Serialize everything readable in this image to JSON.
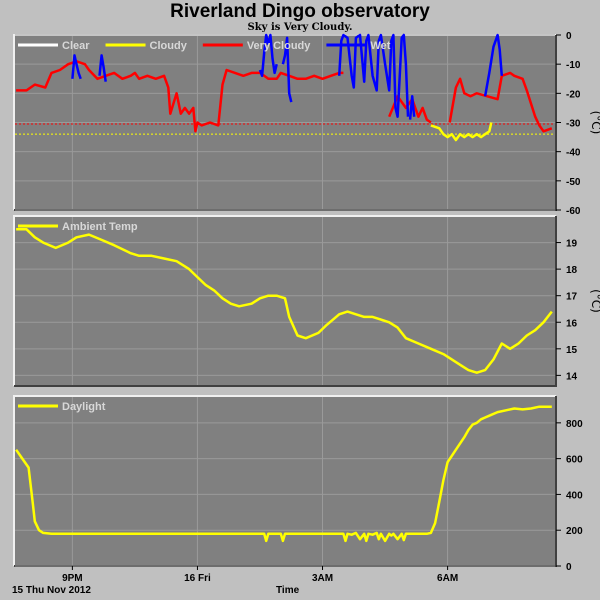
{
  "title": "Riverland Dingo observatory",
  "subtitle": "Sky is Very Cloudy.",
  "date_label": "15 Thu Nov 2012",
  "x_axis_label": "Time",
  "x_ticks": [
    {
      "t": 21.0,
      "label": "9PM"
    },
    {
      "t": 24.0,
      "label": "16 Fri"
    },
    {
      "t": 27.0,
      "label": "3AM"
    },
    {
      "t": 30.0,
      "label": "6AM"
    }
  ],
  "colors": {
    "panel_bg": "#808080",
    "grid": "#9a9a9a",
    "clear": "#ffffff",
    "cloudy": "#ffff00",
    "very_cloudy": "#ff0000",
    "wet": "#0000ff",
    "ambient": "#ffff00",
    "daylight": "#ffff00"
  },
  "chart_data": [
    {
      "type": "line",
      "id": "sky",
      "unit_label": "(°C)",
      "ylim": [
        -60,
        0
      ],
      "yticks": [
        0,
        -10,
        -20,
        -30,
        -40,
        -50,
        -60
      ],
      "xlim": [
        19.6,
        32.6
      ],
      "grid": true,
      "legend": [
        {
          "name": "Clear",
          "color_key": "clear"
        },
        {
          "name": "Cloudy",
          "color_key": "cloudy"
        },
        {
          "name": "Very Cloudy",
          "color_key": "very_cloudy"
        },
        {
          "name": "Wet",
          "color_key": "wet"
        }
      ],
      "thresholds": [
        {
          "value": -30.5,
          "color_key": "very_cloudy"
        },
        {
          "value": -34,
          "color_key": "cloudy"
        }
      ],
      "series": [
        {
          "color_key": "very_cloudy",
          "x": [
            19.65,
            19.9,
            20.1,
            20.35,
            20.5,
            20.7,
            20.9,
            21.1,
            21.3,
            21.4,
            21.6,
            21.8,
            22.0,
            22.2,
            22.4,
            22.5,
            22.6,
            22.8,
            23.0,
            23.2,
            23.3,
            23.35,
            23.5,
            23.6,
            23.7,
            23.8,
            23.9,
            23.95,
            24.0,
            24.1,
            24.3,
            24.5,
            24.6,
            24.7,
            24.9,
            25.1,
            25.3,
            25.5,
            25.6,
            25.7,
            25.9,
            26.0,
            26.2,
            26.4,
            26.6,
            26.8,
            27.0,
            27.2,
            27.4,
            27.5
          ],
          "y": [
            -19,
            -19,
            -17,
            -18,
            -13,
            -12,
            -10,
            -9,
            -10,
            -12,
            -15,
            -14,
            -13,
            -15,
            -14,
            -13,
            -15,
            -14,
            -15,
            -14,
            -18,
            -27,
            -20,
            -27,
            -25,
            -27,
            -25,
            -33,
            -30,
            -31,
            -30,
            -31,
            -17,
            -12,
            -13,
            -14,
            -13,
            -13,
            -14,
            -15,
            -15,
            -13,
            -14,
            -15,
            -15,
            -14,
            -15,
            -14,
            -13,
            -13
          ]
        },
        {
          "color_key": "very_cloudy",
          "x": [
            28.6,
            28.8,
            29.0,
            29.15,
            29.3,
            29.4,
            29.5,
            29.6
          ],
          "y": [
            -28,
            -21,
            -25,
            -22,
            -28,
            -25,
            -29,
            -30
          ]
        },
        {
          "color_key": "very_cloudy",
          "x": [
            30.05,
            30.2,
            30.3,
            30.4,
            30.55,
            30.7,
            31.2,
            31.3,
            31.5,
            31.6,
            31.8,
            31.9,
            32.1,
            32.2,
            32.3,
            32.5
          ],
          "y": [
            -30,
            -18,
            -15,
            -20,
            -21,
            -20,
            -22,
            -14,
            -13,
            -14,
            -15,
            -19,
            -28,
            -31,
            -33,
            -32
          ]
        },
        {
          "color_key": "cloudy",
          "x": [
            29.6,
            29.8,
            29.9,
            30.0,
            30.1,
            30.2,
            30.3,
            30.4,
            30.5,
            30.6,
            30.7,
            30.8,
            30.9,
            31.0,
            31.05
          ],
          "y": [
            -31,
            -32,
            -34,
            -35,
            -34,
            -36,
            -34,
            -35,
            -34,
            -35,
            -34,
            -35,
            -34,
            -33,
            -30
          ]
        },
        {
          "color_key": "wet",
          "x": [
            21.0,
            21.05,
            21.1,
            21.15,
            21.2
          ],
          "y": [
            -15,
            -7,
            -10,
            -13,
            -15
          ]
        },
        {
          "color_key": "wet",
          "x": [
            21.65,
            21.7,
            21.75,
            21.8
          ],
          "y": [
            -14,
            -7,
            -11,
            -16
          ]
        },
        {
          "color_key": "wet",
          "x": [
            25.5,
            25.55,
            25.6,
            25.65,
            25.7,
            25.75,
            25.8,
            25.85,
            25.9
          ],
          "y": [
            -12,
            -14,
            -6,
            0,
            -3,
            0,
            -8,
            -13,
            -10
          ]
        },
        {
          "color_key": "wet",
          "x": [
            26.05,
            26.1,
            26.15,
            26.2,
            26.25
          ],
          "y": [
            -10,
            -7,
            -1,
            -20,
            -23
          ]
        },
        {
          "color_key": "wet",
          "x": [
            27.4,
            27.45,
            27.5,
            27.6,
            27.7,
            27.75,
            27.8,
            27.9,
            27.95,
            28.0,
            28.05,
            28.1,
            28.2,
            28.3,
            28.35,
            28.4,
            28.5,
            28.6,
            28.65,
            28.7,
            28.75,
            28.8,
            28.9,
            28.95,
            29.0,
            29.05
          ],
          "y": [
            -14,
            -2,
            0,
            -1,
            -14,
            -18,
            -1,
            0,
            -8,
            -16,
            -2,
            0,
            -14,
            -19,
            -2,
            0,
            -10,
            -19,
            -2,
            0,
            -25,
            -28,
            -1,
            0,
            -10,
            -28
          ]
        },
        {
          "color_key": "wet",
          "x": [
            29.1,
            29.15,
            29.2
          ],
          "y": [
            -29,
            -21,
            -28
          ]
        },
        {
          "color_key": "wet",
          "x": [
            30.9,
            31.0,
            31.1,
            31.2,
            31.25,
            31.3
          ],
          "y": [
            -21,
            -13,
            -4,
            0,
            -5,
            -14
          ]
        }
      ]
    },
    {
      "type": "line",
      "id": "ambient",
      "name": "Ambient Temp",
      "unit_label": "(°C)",
      "ylim": [
        13.6,
        20.0
      ],
      "yticks": [
        14,
        15,
        16,
        17,
        18,
        19
      ],
      "xlim": [
        19.6,
        32.6
      ],
      "grid": true,
      "series": [
        {
          "name": "Ambient Temp",
          "color_key": "ambient",
          "x": [
            19.65,
            19.9,
            20.1,
            20.3,
            20.6,
            20.9,
            21.1,
            21.4,
            21.7,
            22.0,
            22.4,
            22.6,
            22.9,
            23.2,
            23.5,
            23.8,
            24.0,
            24.2,
            24.4,
            24.6,
            24.8,
            25.0,
            25.3,
            25.5,
            25.7,
            25.9,
            26.1,
            26.2,
            26.4,
            26.6,
            26.9,
            27.1,
            27.4,
            27.6,
            27.8,
            28.0,
            28.2,
            28.4,
            28.6,
            28.8,
            29.0,
            29.3,
            29.6,
            29.9,
            30.1,
            30.3,
            30.5,
            30.7,
            30.9,
            31.1,
            31.3,
            31.5,
            31.7,
            31.9,
            32.1,
            32.3,
            32.5
          ],
          "y": [
            19.5,
            19.5,
            19.2,
            19.0,
            18.8,
            19.0,
            19.2,
            19.3,
            19.1,
            18.9,
            18.6,
            18.5,
            18.5,
            18.4,
            18.3,
            18.0,
            17.7,
            17.4,
            17.2,
            16.9,
            16.7,
            16.6,
            16.7,
            16.9,
            17.0,
            17.0,
            16.9,
            16.2,
            15.5,
            15.4,
            15.6,
            15.9,
            16.3,
            16.4,
            16.3,
            16.2,
            16.2,
            16.1,
            16.0,
            15.8,
            15.4,
            15.2,
            15.0,
            14.8,
            14.6,
            14.4,
            14.2,
            14.1,
            14.2,
            14.6,
            15.2,
            15.0,
            15.2,
            15.5,
            15.7,
            16.0,
            16.4
          ]
        }
      ]
    },
    {
      "type": "line",
      "id": "daylight",
      "name": "Daylight",
      "ylim": [
        0,
        950
      ],
      "yticks": [
        0,
        200,
        400,
        600,
        800
      ],
      "xlim": [
        19.6,
        32.6
      ],
      "grid": true,
      "series": [
        {
          "name": "Daylight",
          "color_key": "daylight",
          "x": [
            19.65,
            19.8,
            19.95,
            20.05,
            20.1,
            20.2,
            20.3,
            20.5,
            21.0,
            22.0,
            23.0,
            24.0,
            25.0,
            25.6,
            25.65,
            25.7,
            25.8,
            26.0,
            26.05,
            26.1,
            26.3,
            27.0,
            27.5,
            27.55,
            27.6,
            27.7,
            27.8,
            27.9,
            28.0,
            28.05,
            28.1,
            28.2,
            28.3,
            28.35,
            28.4,
            28.5,
            28.6,
            28.65,
            28.7,
            28.8,
            28.9,
            28.95,
            29.0,
            29.2,
            29.5,
            29.6,
            29.7,
            29.8,
            29.9,
            30.0,
            30.2,
            30.4,
            30.5,
            30.6,
            30.7,
            30.8,
            30.9,
            31.0,
            31.2,
            31.4,
            31.6,
            31.8,
            32.0,
            32.2,
            32.4,
            32.5
          ],
          "y": [
            650,
            600,
            550,
            350,
            250,
            200,
            185,
            180,
            180,
            180,
            180,
            180,
            180,
            180,
            140,
            180,
            180,
            180,
            140,
            180,
            180,
            180,
            180,
            140,
            180,
            175,
            185,
            150,
            180,
            140,
            180,
            175,
            185,
            150,
            180,
            140,
            180,
            170,
            180,
            150,
            180,
            145,
            180,
            180,
            180,
            185,
            240,
            360,
            480,
            580,
            650,
            720,
            760,
            790,
            800,
            820,
            830,
            840,
            860,
            870,
            880,
            875,
            880,
            890,
            890,
            890
          ]
        }
      ]
    }
  ]
}
